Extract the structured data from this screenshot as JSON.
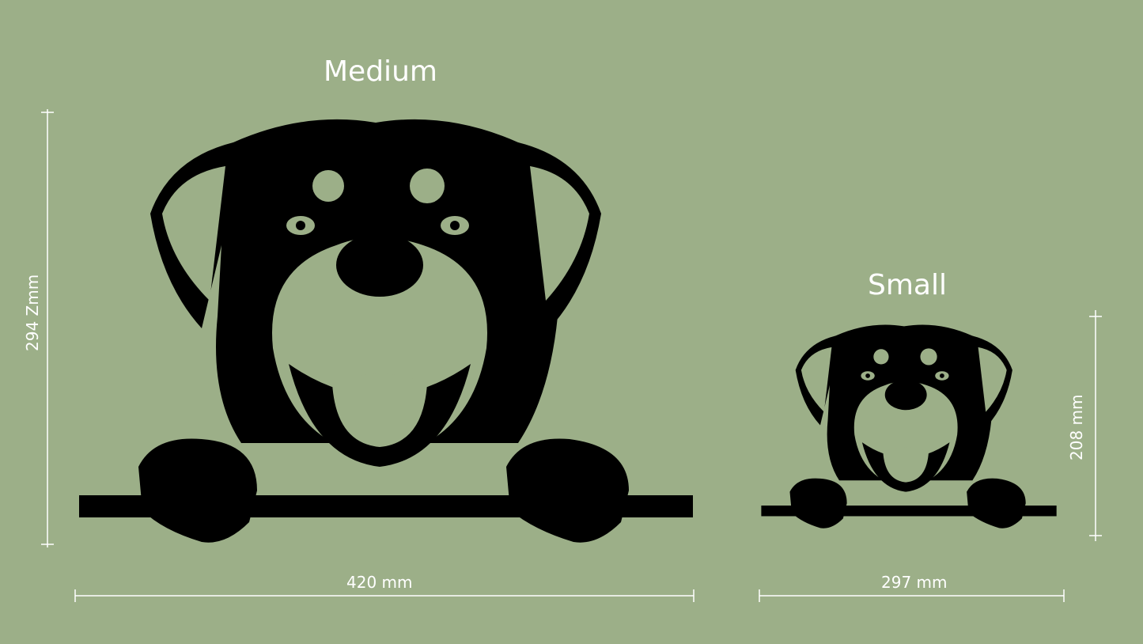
{
  "medium": {
    "title": "Medium",
    "width_label": "420 mm",
    "height_label": "294 Zmm"
  },
  "small": {
    "title": "Small",
    "width_label": "297 mm",
    "height_label": "208 mm"
  },
  "colors": {
    "background": "#9caf88",
    "silhouette": "#000000",
    "text": "#ffffff"
  },
  "image": {
    "subject": "rottweiler-peeking-over-bar"
  }
}
